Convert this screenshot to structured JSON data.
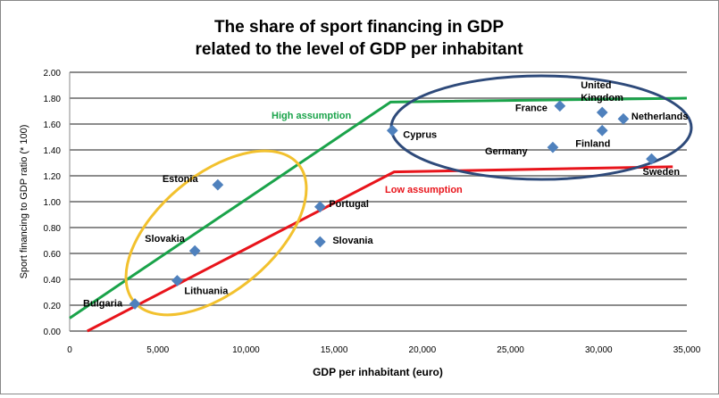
{
  "chart_data": {
    "type": "scatter",
    "title": [
      "The share of sport financing in GDP",
      "related to the level of GDP per inhabitant"
    ],
    "xlabel": "GDP per inhabitant (euro)",
    "ylabel": "Sport financing to GDP ratio (* 100)",
    "xlim": [
      0,
      35000
    ],
    "ylim": [
      0,
      2.0
    ],
    "xticks": [
      0,
      5000,
      10000,
      15000,
      20000,
      25000,
      30000,
      35000
    ],
    "xtick_labels": [
      "0",
      "5,000",
      "10,000",
      "15,000",
      "20,000",
      "25,000",
      "30,000",
      "35,000"
    ],
    "yticks": [
      0,
      0.2,
      0.4,
      0.6,
      0.8,
      1.0,
      1.2,
      1.4,
      1.6,
      1.8,
      2.0
    ],
    "ytick_labels": [
      "0.00",
      "0.20",
      "0.40",
      "0.60",
      "0.80",
      "1.00",
      "1.20",
      "1.40",
      "1.60",
      "1.80",
      "2.00"
    ],
    "grid": "horizontal",
    "marker_color": "#4F81BD",
    "points": [
      {
        "label": "Bulgaria",
        "x": 3700,
        "y": 0.21
      },
      {
        "label": "Lithuania",
        "x": 6100,
        "y": 0.39
      },
      {
        "label": "Slovakia",
        "x": 7100,
        "y": 0.62
      },
      {
        "label": "Estonia",
        "x": 8400,
        "y": 1.13
      },
      {
        "label": "Portugal",
        "x": 14200,
        "y": 0.96
      },
      {
        "label": "Slovania",
        "x": 14200,
        "y": 0.69
      },
      {
        "label": "Cyprus",
        "x": 18300,
        "y": 1.55
      },
      {
        "label": "Germany",
        "x": 27400,
        "y": 1.42
      },
      {
        "label": "France",
        "x": 27800,
        "y": 1.74
      },
      {
        "label": "United Kingdom",
        "x": 30200,
        "y": 1.69
      },
      {
        "label": "Finland",
        "x": 30200,
        "y": 1.55
      },
      {
        "label": "Netherlands",
        "x": 31400,
        "y": 1.64
      },
      {
        "label": "Sweden",
        "x": 33000,
        "y": 1.33
      }
    ],
    "lines": [
      {
        "name": "High assumption",
        "color": "#1AA34A",
        "x": [
          0,
          18200,
          35000
        ],
        "y": [
          0.1,
          1.77,
          1.8
        ]
      },
      {
        "name": "Low assumption",
        "color": "#E8141B",
        "x": [
          1000,
          18400,
          34200
        ],
        "y": [
          0.0,
          1.23,
          1.27
        ]
      }
    ],
    "annotations": [
      {
        "type": "ellipse",
        "color": "#F2C12E",
        "group": "low-income"
      },
      {
        "type": "ellipse",
        "color": "#2E4A7A",
        "group": "high-income"
      }
    ]
  }
}
